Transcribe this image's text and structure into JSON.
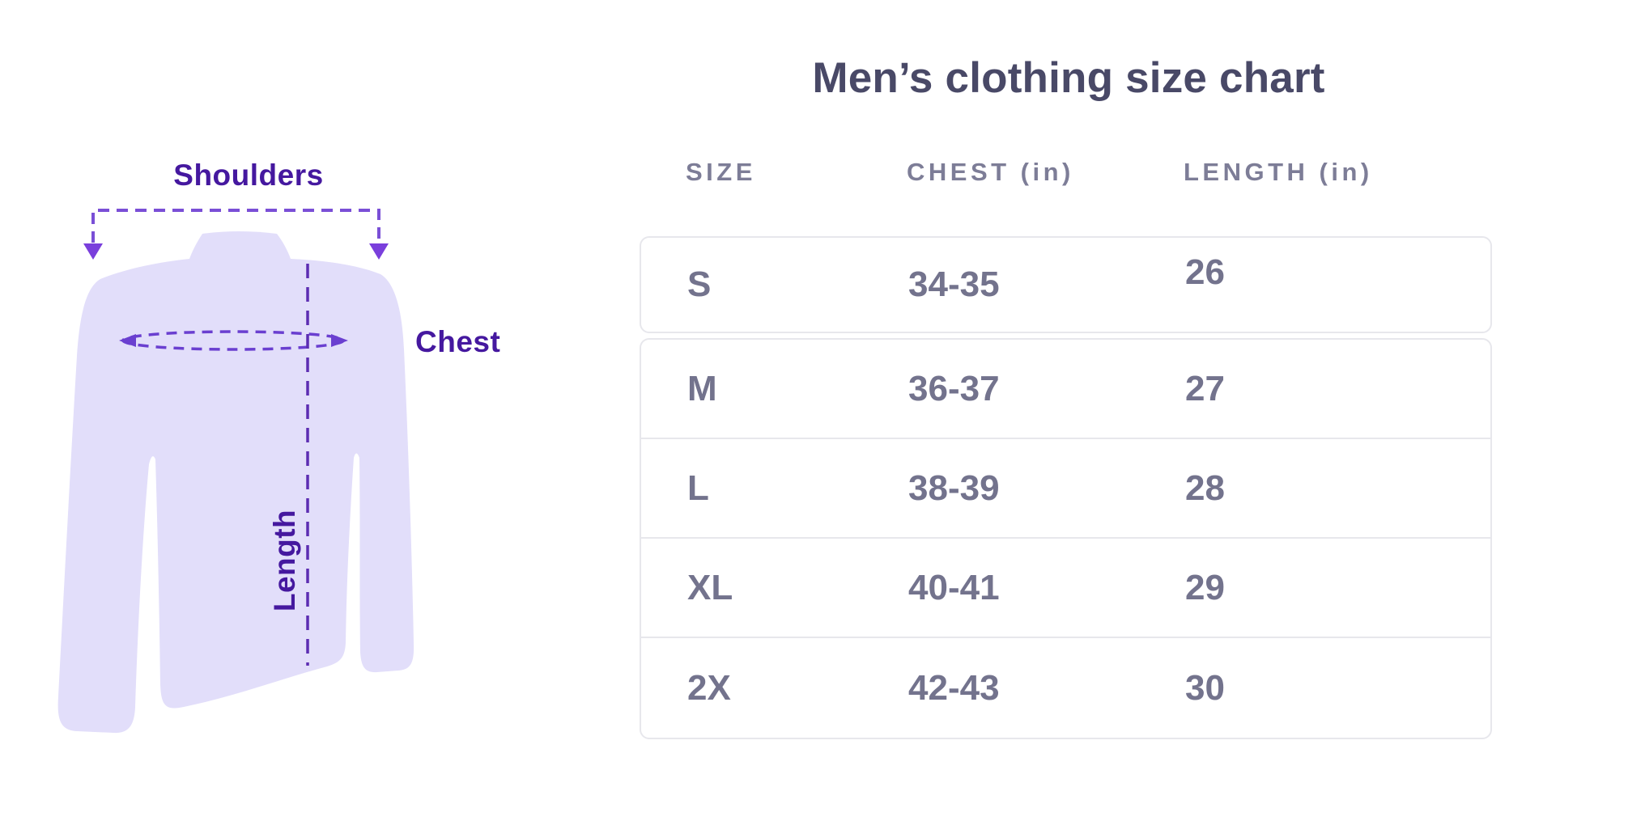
{
  "title": "Men’s clothing size chart",
  "diagram": {
    "shoulders_label": "Shoulders",
    "chest_label": "Chest",
    "length_label": "Length",
    "colors": {
      "shirt_fill": "#e2defa",
      "label_purple": "#45189f",
      "bracket_dash_purple": "#7a4fd6",
      "ellipse_dash_purple": "#6a3fd0",
      "center_line_purple": "#5c2db2",
      "arrow_purple": "#7a3fdc"
    }
  },
  "table": {
    "columns": [
      "SIZE",
      "CHEST (in)",
      "LENGTH (in)"
    ],
    "rows": [
      {
        "size": "S",
        "chest": "34-35",
        "length": "26"
      },
      {
        "size": "M",
        "chest": "36-37",
        "length": "27"
      },
      {
        "size": "L",
        "chest": "38-39",
        "length": "28"
      },
      {
        "size": "XL",
        "chest": "40-41",
        "length": "29"
      },
      {
        "size": "2X",
        "chest": "42-43",
        "length": "30"
      }
    ],
    "colors": {
      "title_text": "#494967",
      "header_text": "#7d7d97",
      "cell_text": "#73738d",
      "border": "#e7e7ec"
    }
  },
  "chart_data": {
    "type": "table",
    "title": "Men’s clothing size chart",
    "columns": [
      "SIZE",
      "CHEST (in)",
      "LENGTH (in)"
    ],
    "rows": [
      [
        "S",
        "34-35",
        "26"
      ],
      [
        "M",
        "36-37",
        "27"
      ],
      [
        "L",
        "38-39",
        "28"
      ],
      [
        "XL",
        "40-41",
        "29"
      ],
      [
        "2X",
        "42-43",
        "30"
      ]
    ]
  }
}
